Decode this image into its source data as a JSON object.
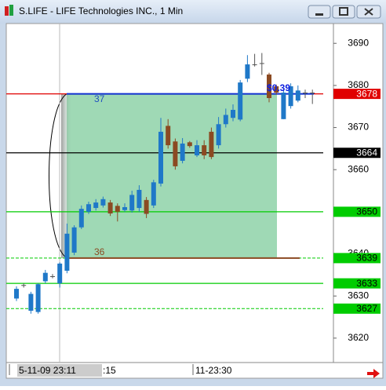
{
  "window": {
    "title": "S.LIFE - LIFE Technologies INC., 1 Min"
  },
  "chart_data": {
    "type": "candlestick",
    "open": [
      3629.4,
      3632.6,
      3626.5,
      3626.2,
      3633.5,
      3634.7,
      3633,
      3636,
      3640.3,
      3646.3,
      3650,
      3650.9,
      3651.5,
      3652.2,
      3651.4,
      3650.4,
      3650.3,
      3650.9,
      3652.8,
      3651.5,
      3656.7,
      3670.4,
      3666.7,
      3662.1,
      3666.5,
      3663.4,
      3665.8,
      3669,
      3665.8,
      3670.8,
      3672.3,
      3671.9,
      3681.6,
      3685,
      3685.3,
      3682.6,
      3679.8,
      3672,
      3675.1,
      3676.4,
      3678.3,
      3678.3
    ],
    "high": [
      3632.3,
      3633,
      3631,
      3633,
      3636.2,
      3635.2,
      3638,
      3647.2,
      3646.8,
      3651.5,
      3652.4,
      3653,
      3653.6,
      3652.8,
      3652,
      3652,
      3655,
      3656.3,
      3653.5,
      3657.6,
      3672.3,
      3672,
      3667.4,
      3667.5,
      3666.8,
      3667,
      3667,
      3670,
      3672.5,
      3674.5,
      3675.5,
      3681.3,
      3687.2,
      3687.5,
      3687.7,
      3683,
      3680.2,
      3679,
      3680.5,
      3680,
      3679,
      3679
    ],
    "low": [
      3628.8,
      3632,
      3625.8,
      3625.8,
      3633,
      3634.2,
      3632,
      3635.4,
      3639.7,
      3645.9,
      3649.5,
      3650.3,
      3651,
      3649,
      3647.7,
      3650,
      3649.8,
      3650,
      3648.5,
      3650.9,
      3656,
      3665,
      3660,
      3661.5,
      3665.2,
      3663,
      3662.5,
      3662.5,
      3665,
      3670,
      3671.5,
      3671.5,
      3680.8,
      3684.5,
      3682.5,
      3676,
      3677.8,
      3672,
      3674.5,
      3676,
      3677,
      3675.6
    ],
    "close": [
      3631.7,
      3632.6,
      3630.5,
      3632.8,
      3635.5,
      3634.7,
      3637.7,
      3644.8,
      3646.3,
      3650.7,
      3651.8,
      3652.2,
      3653,
      3649.6,
      3650,
      3651.1,
      3654,
      3655.2,
      3649.5,
      3657,
      3669,
      3665.8,
      3660.8,
      3666.2,
      3665.6,
      3665.8,
      3663.4,
      3663,
      3670.8,
      3673,
      3674.2,
      3680.7,
      3685,
      3685,
      3685.3,
      3677,
      3678.3,
      3678.3,
      3679.8,
      3678.8,
      3678.3,
      3678.3
    ],
    "up_color": "#1f78c8",
    "down_color": "#8b4a22",
    "ylim": [
      3614.2,
      3694.7
    ],
    "yticks": [
      3620,
      3630,
      3640,
      3660,
      3670,
      3680,
      3690
    ],
    "time_labels": [
      "5-11-09 23:11",
      ":15",
      "11-23:30"
    ],
    "levels": [
      {
        "value": 3678,
        "color": "#e00000",
        "text_color": "#ffffff"
      },
      {
        "value": 3664,
        "color": "#000000",
        "text_color": "#ffffff"
      },
      {
        "value": 3650,
        "color": "#00cc00",
        "text_color": "#000000"
      },
      {
        "value": 3639,
        "color": "#00cc00",
        "text_color": "#000000",
        "dashed": true
      },
      {
        "value": 3633,
        "color": "#00cc00",
        "text_color": "#000000"
      },
      {
        "value": 3627,
        "color": "#00cc00",
        "text_color": "#000000",
        "dashed": true
      }
    ],
    "measure": {
      "top": 3678,
      "bottom": 3639,
      "label": "$0.39",
      "top_count": "37",
      "bottom_count": "36",
      "color": "#9fd9b5"
    }
  }
}
